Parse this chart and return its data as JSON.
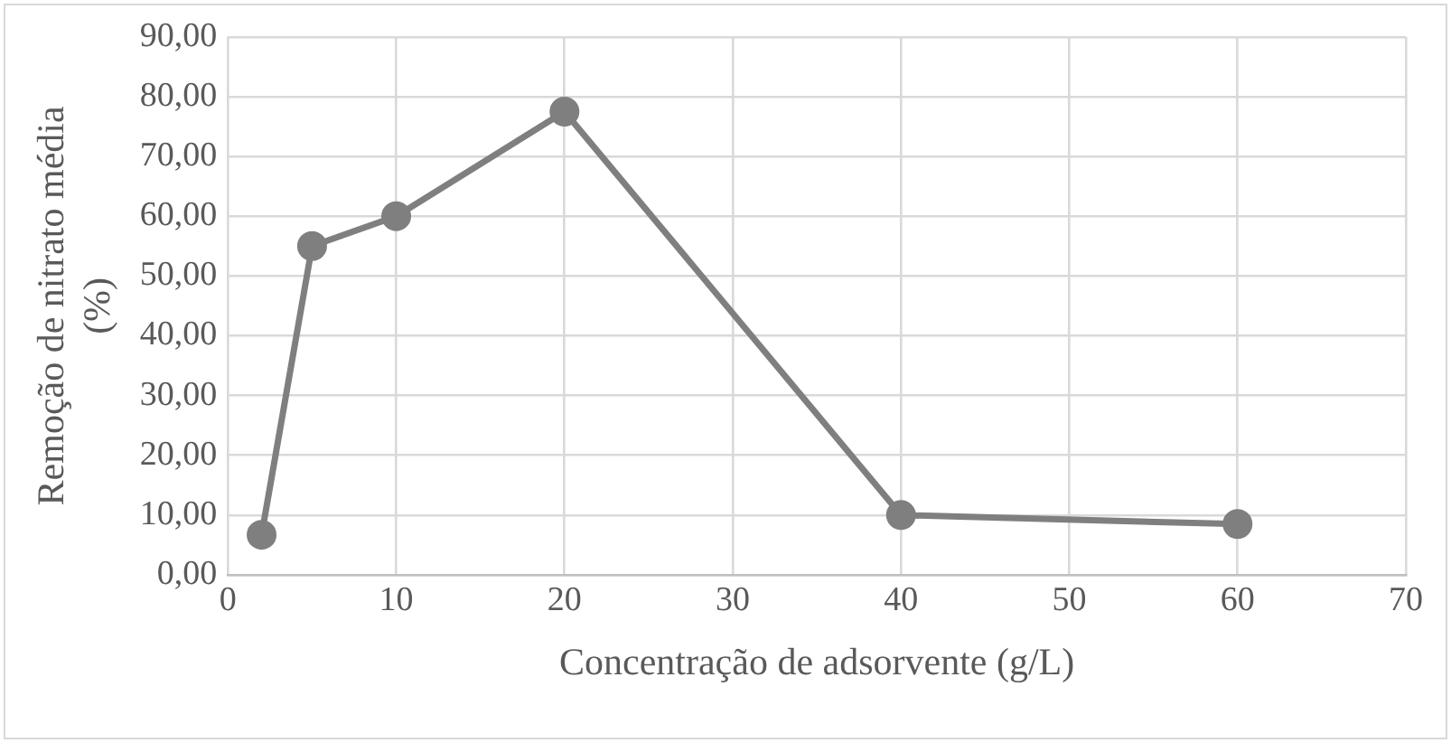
{
  "chart_data": {
    "type": "line",
    "xlabel": "Concentração de adsorvente (g/L)",
    "ylabel": "Remoção de nitrato média (%)",
    "x": [
      2,
      5,
      10,
      20,
      40,
      60
    ],
    "series": [
      {
        "color": "#7f7f7f",
        "values": [
          6.7,
          55,
          60,
          77.5,
          10,
          8.5
        ]
      }
    ],
    "xlim": [
      0,
      70
    ],
    "xticks": [
      0,
      10,
      20,
      30,
      40,
      50,
      60,
      70
    ],
    "ylim": [
      0,
      90
    ],
    "yticks": [
      {
        "value": 0,
        "label": "0,00"
      },
      {
        "value": 10,
        "label": "10,00"
      },
      {
        "value": 20,
        "label": "20,00"
      },
      {
        "value": 30,
        "label": "30,00"
      },
      {
        "value": 40,
        "label": "40,00"
      },
      {
        "value": 50,
        "label": "50,00"
      },
      {
        "value": 60,
        "label": "60,00"
      },
      {
        "value": 70,
        "label": "70,00"
      },
      {
        "value": 80,
        "label": "80,00"
      },
      {
        "value": 90,
        "label": "90,00"
      }
    ],
    "grid": true,
    "legend": false,
    "marker": "circle",
    "line_style": "solid"
  }
}
